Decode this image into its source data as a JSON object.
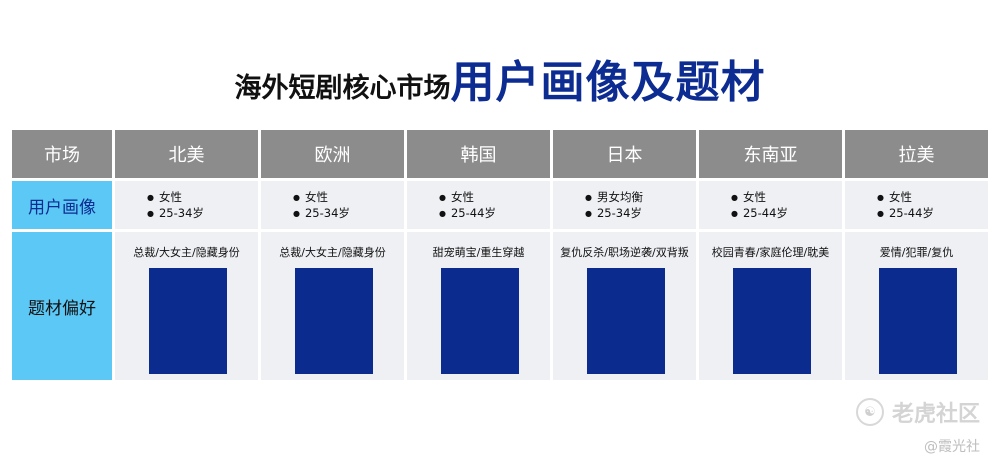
{
  "title": {
    "main": "海外短剧核心市场",
    "accent": "用户画像及题材"
  },
  "table": {
    "corner": "市场",
    "markets": [
      "北美",
      "欧洲",
      "韩国",
      "日本",
      "东南亚",
      "拉美"
    ],
    "row_labels": {
      "persona": "用户画像",
      "genre": "题材偏好"
    },
    "persona": [
      [
        "女性",
        "25-34岁"
      ],
      [
        "女性",
        "25-34岁"
      ],
      [
        "女性",
        "25-44岁"
      ],
      [
        "男女均衡",
        "25-34岁"
      ],
      [
        "女性",
        "25-44岁"
      ],
      [
        "女性",
        "25-44岁"
      ]
    ],
    "genres": [
      "总裁/大女主/隐藏身份",
      "总裁/大女主/隐藏身份",
      "甜宠萌宝/重生穿越",
      "复仇反杀/职场逆袭/双背叛",
      "校园青春/家庭伦理/耽美",
      "爱情/犯罪/复仇"
    ]
  },
  "watermark": {
    "icon": "tiger-logo-icon",
    "text": "老虎社区",
    "credit": "@霞光社"
  },
  "colors": {
    "accent": "#0d2c91",
    "header_bg": "#8c8c8c",
    "row_header_bg": "#5cc8f5",
    "cell_bg": "#eef0f4",
    "bar": "#0b2b8f"
  }
}
